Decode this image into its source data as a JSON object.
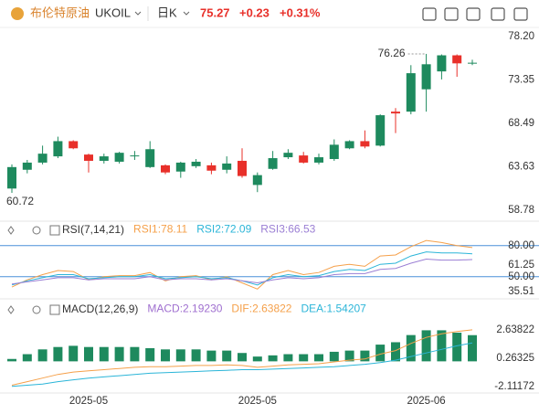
{
  "header": {
    "name": "布伦特原油",
    "symbol": "UKOIL",
    "period": "日K",
    "price": "75.27",
    "change": "+0.23",
    "change_pct": "+0.31%"
  },
  "chart_data": [
    {
      "type": "candlestick",
      "up_color": "#1e8a5e",
      "down_color": "#e8302a",
      "categories": [
        null,
        null,
        null,
        null,
        null,
        "2025-05",
        null,
        null,
        null,
        null,
        null,
        null,
        null,
        null,
        null,
        null,
        "2025-05",
        null,
        null,
        null,
        null,
        null,
        null,
        null,
        null,
        null,
        null,
        "2025-06",
        null,
        null,
        null
      ],
      "open": [
        61.2,
        63.3,
        64.1,
        64.8,
        66.5,
        65.0,
        64.3,
        64.2,
        64.85,
        63.6,
        63.8,
        63.1,
        63.7,
        63.8,
        63.3,
        64.3,
        61.6,
        63.4,
        64.7,
        64.9,
        64.1,
        64.5,
        65.7,
        66.5,
        66.0,
        69.8,
        69.8,
        72.3,
        74.3,
        76.1,
        75.2
      ],
      "high": [
        63.9,
        64.4,
        66.0,
        67.0,
        66.6,
        65.1,
        65.1,
        65.3,
        65.4,
        66.5,
        63.9,
        64.2,
        64.5,
        64.1,
        64.8,
        65.7,
        63.0,
        65.4,
        65.6,
        65.3,
        65.1,
        66.7,
        66.6,
        67.7,
        69.5,
        70.2,
        75.0,
        76.26,
        76.2,
        76.2,
        75.6
      ],
      "low": [
        60.72,
        62.9,
        63.9,
        64.6,
        65.6,
        63.0,
        64.0,
        64.0,
        64.4,
        63.5,
        62.8,
        62.4,
        63.5,
        62.8,
        62.9,
        62.4,
        60.8,
        63.3,
        64.5,
        64.0,
        63.9,
        64.3,
        65.6,
        65.7,
        65.9,
        67.4,
        69.5,
        69.8,
        73.4,
        73.7,
        75.0
      ],
      "close": [
        63.6,
        64.1,
        65.1,
        66.5,
        65.7,
        64.3,
        64.8,
        65.2,
        64.9,
        65.6,
        63.0,
        64.1,
        64.2,
        63.2,
        64.0,
        62.6,
        62.7,
        64.6,
        65.2,
        64.1,
        64.7,
        66.1,
        66.5,
        65.9,
        69.4,
        69.6,
        74.1,
        75.1,
        76.1,
        75.2,
        75.27
      ],
      "high_label": "76.26",
      "low_label": "60.72",
      "ylim": [
        57.96,
        79.22
      ],
      "yticks": [
        {
          "value": 78.2,
          "label": "78.20"
        },
        73.35,
        68.49,
        63.63,
        58.78
      ]
    },
    {
      "type": "line",
      "title": "RSI(7,14,21)",
      "series": [
        {
          "name": "RSI1:78.11",
          "color": "#f5a04a",
          "values": [
            40,
            47,
            52,
            56,
            55,
            47,
            50,
            51,
            51,
            54,
            46,
            50,
            51,
            47,
            50,
            44,
            38,
            52,
            56,
            52,
            54,
            60,
            62,
            60,
            70,
            71,
            79,
            85,
            83,
            80,
            78.11
          ]
        },
        {
          "name": "RSI2:72.09",
          "color": "#2bb5d8",
          "values": [
            42,
            46,
            49,
            52,
            52,
            48,
            49,
            50,
            50,
            52,
            48,
            49,
            50,
            48,
            49,
            46,
            42,
            49,
            52,
            50,
            51,
            55,
            57,
            56,
            62,
            63,
            70,
            74,
            73,
            73,
            72.09
          ]
        },
        {
          "name": "RSI3:66.53",
          "color": "#9b7fd4",
          "values": [
            43,
            45,
            47,
            49,
            49,
            47,
            48,
            48,
            48,
            50,
            47,
            48,
            48,
            47,
            48,
            46,
            44,
            47,
            49,
            48,
            49,
            52,
            53,
            53,
            57,
            58,
            63,
            67,
            66,
            66,
            66.53
          ]
        }
      ],
      "reference_lines": [
        80,
        50
      ],
      "reference_color": "#4a90d9",
      "ylim": [
        33,
        86
      ],
      "yticks": [
        {
          "value": 80,
          "label": "80.00"
        },
        61.25,
        {
          "value": 50,
          "label": "50.00"
        },
        35.51
      ]
    },
    {
      "type": "macd",
      "title": "MACD(12,26,9)",
      "histogram": {
        "name": "MACD:2.19230",
        "color": "#1e8a5e",
        "label_color": "#a070d0",
        "values": [
          0.2,
          0.6,
          1.0,
          1.2,
          1.3,
          1.2,
          1.2,
          1.2,
          1.2,
          1.1,
          1.0,
          1.0,
          1.0,
          0.9,
          0.9,
          0.7,
          0.4,
          0.5,
          0.6,
          0.6,
          0.6,
          0.8,
          0.9,
          0.9,
          1.4,
          1.6,
          2.2,
          2.6,
          2.6,
          2.4,
          2.1923
        ]
      },
      "series": [
        {
          "name": "DIF:2.63822",
          "color": "#f5a04a",
          "values": [
            -2.0,
            -1.7,
            -1.4,
            -1.1,
            -0.9,
            -0.8,
            -0.7,
            -0.6,
            -0.5,
            -0.45,
            -0.45,
            -0.4,
            -0.35,
            -0.35,
            -0.3,
            -0.35,
            -0.5,
            -0.4,
            -0.3,
            -0.25,
            -0.2,
            -0.05,
            0.1,
            0.2,
            0.6,
            0.9,
            1.5,
            2.0,
            2.3,
            2.5,
            2.63822
          ]
        },
        {
          "name": "DEA:1.54207",
          "color": "#2bb5d8",
          "values": [
            -2.1,
            -2.0,
            -1.9,
            -1.7,
            -1.55,
            -1.4,
            -1.3,
            -1.2,
            -1.1,
            -1.0,
            -0.95,
            -0.9,
            -0.85,
            -0.8,
            -0.75,
            -0.7,
            -0.7,
            -0.65,
            -0.6,
            -0.55,
            -0.5,
            -0.45,
            -0.35,
            -0.25,
            -0.1,
            0.1,
            0.4,
            0.7,
            1.0,
            1.3,
            1.54207
          ]
        }
      ],
      "ylim": [
        -2.65,
        4.85
      ],
      "yticks": [
        2.63822,
        0.26325,
        -2.11172
      ]
    }
  ]
}
